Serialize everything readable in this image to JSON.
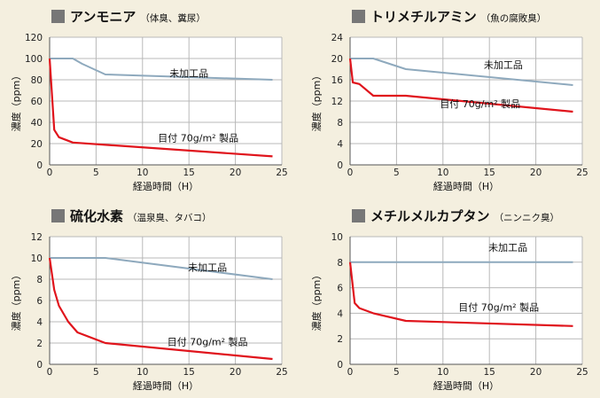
{
  "colors": {
    "background": "#f4efdf",
    "plot_background": "#ffffff",
    "grid": "#b8b8b8",
    "title_square": "#777777",
    "untreated_series": "#8ea9bd",
    "treated_series": "#e0141c"
  },
  "chart_data": [
    {
      "type": "line",
      "title": "アンモニア",
      "subtitle": "（体臭、糞尿）",
      "xlabel": "経過時間（H）",
      "ylabel": "濃度（ppm）",
      "xlim": [
        0,
        25
      ],
      "ylim": [
        0,
        120
      ],
      "xticks": [
        0,
        5,
        10,
        15,
        20,
        25
      ],
      "yticks": [
        0,
        20,
        40,
        60,
        80,
        100,
        120
      ],
      "grid": true,
      "series": [
        {
          "name": "未加工品",
          "key": "untreated",
          "x": [
            0,
            2.5,
            3.5,
            6,
            24
          ],
          "y": [
            100,
            100,
            95,
            85,
            80
          ]
        },
        {
          "name": "目付 70g/m² 製品",
          "key": "treated",
          "x": [
            0,
            0.5,
            1,
            2.5,
            24
          ],
          "y": [
            100,
            33,
            26,
            21,
            8
          ]
        }
      ]
    },
    {
      "type": "line",
      "title": "トリメチルアミン",
      "subtitle": "（魚の腐敗臭）",
      "xlabel": "経過時間（H）",
      "ylabel": "濃度（ppm）",
      "xlim": [
        0,
        25
      ],
      "ylim": [
        0,
        24
      ],
      "xticks": [
        0,
        5,
        10,
        15,
        20,
        25
      ],
      "yticks": [
        0,
        4,
        8,
        12,
        16,
        20,
        24
      ],
      "grid": true,
      "series": [
        {
          "name": "未加工品",
          "key": "untreated",
          "x": [
            0,
            2.5,
            6,
            24
          ],
          "y": [
            20,
            20,
            18,
            15
          ]
        },
        {
          "name": "目付 70g/m² 製品",
          "key": "treated",
          "x": [
            0,
            0.3,
            1,
            2.5,
            6,
            24
          ],
          "y": [
            20,
            15.5,
            15.2,
            13,
            13,
            10
          ]
        }
      ]
    },
    {
      "type": "line",
      "title": "硫化水素",
      "subtitle": "（温泉臭、タバコ）",
      "xlabel": "経過時間（H）",
      "ylabel": "濃度（ppm）",
      "xlim": [
        0,
        25
      ],
      "ylim": [
        0,
        12
      ],
      "xticks": [
        0,
        5,
        10,
        15,
        20,
        25
      ],
      "yticks": [
        0,
        2,
        4,
        6,
        8,
        10,
        12
      ],
      "grid": true,
      "series": [
        {
          "name": "未加工品",
          "key": "untreated",
          "x": [
            0,
            6,
            24
          ],
          "y": [
            10,
            10,
            8
          ]
        },
        {
          "name": "目付 70g/m² 製品",
          "key": "treated",
          "x": [
            0,
            0.5,
            1,
            2,
            3,
            6,
            24
          ],
          "y": [
            10,
            7,
            5.5,
            4,
            3,
            2,
            0.5
          ]
        }
      ]
    },
    {
      "type": "line",
      "title": "メチルメルカプタン",
      "subtitle": "（ニンニク臭）",
      "xlabel": "経過時間（H）",
      "ylabel": "濃度（ppm）",
      "xlim": [
        0,
        25
      ],
      "ylim": [
        0,
        10
      ],
      "xticks": [
        0,
        5,
        10,
        15,
        20,
        25
      ],
      "yticks": [
        0,
        2,
        4,
        6,
        8,
        10
      ],
      "grid": true,
      "series": [
        {
          "name": "未加工品",
          "key": "untreated",
          "x": [
            0,
            24
          ],
          "y": [
            8,
            8
          ]
        },
        {
          "name": "目付 70g/m² 製品",
          "key": "treated",
          "x": [
            0,
            0.5,
            1,
            2.5,
            6,
            24
          ],
          "y": [
            8,
            4.8,
            4.4,
            4,
            3.4,
            3
          ]
        }
      ]
    }
  ]
}
